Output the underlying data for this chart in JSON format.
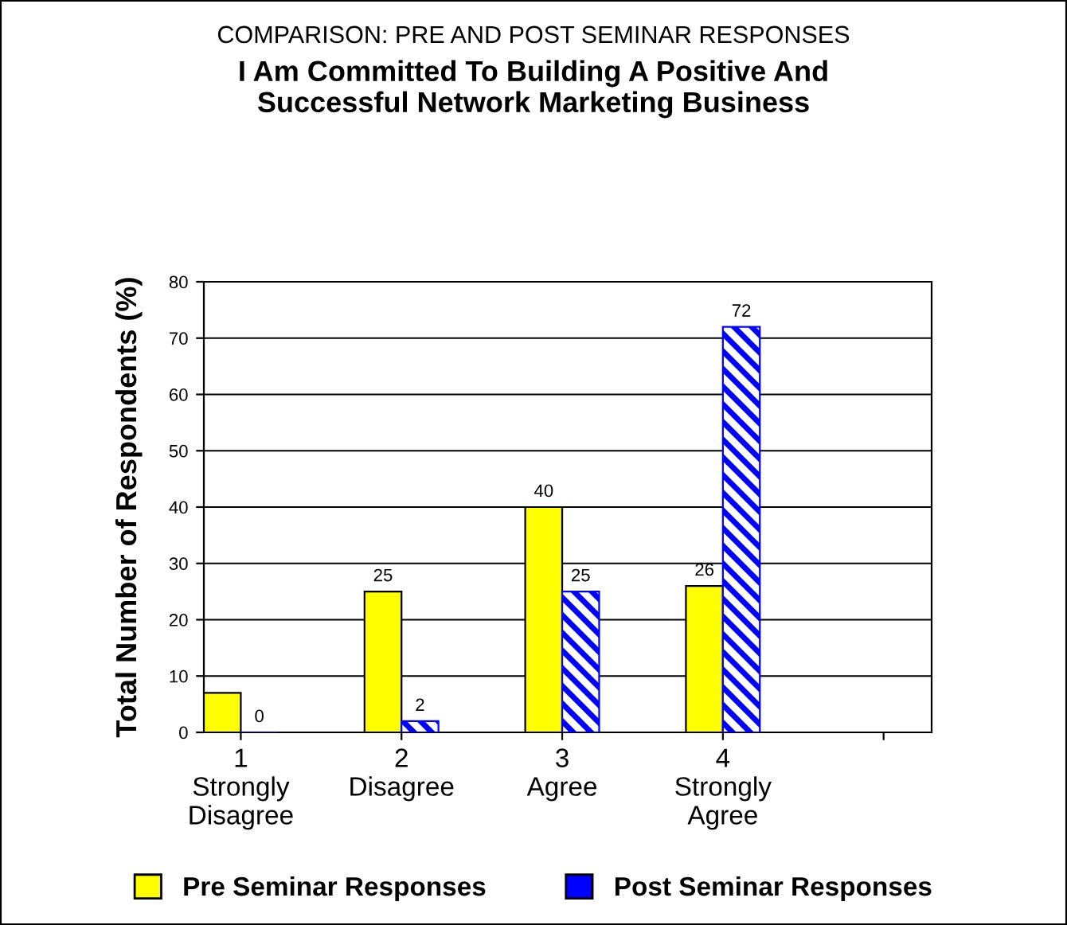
{
  "chart_data": {
    "type": "bar",
    "subtitle": "COMPARISON: PRE AND POST SEMINAR RESPONSES",
    "title": "I Am Committed To Building A Positive And\nSuccessful Network Marketing Business",
    "ylabel": "Total Number of Respondents (%)",
    "categories": [
      "1\nStrongly\nDisagree",
      "2\nDisagree",
      "3\nAgree",
      "4\nStrongly\nAgree",
      null
    ],
    "series": [
      {
        "name": "Pre Seminar Responses",
        "color": "#ffff00",
        "values": [
          7,
          25,
          40,
          26,
          null
        ],
        "value_labels": [
          null,
          "25",
          "40",
          "26",
          null
        ]
      },
      {
        "name": "Post Seminar Responses",
        "color": "#0000ff",
        "values": [
          0,
          2,
          25,
          72,
          null
        ],
        "value_labels": [
          "0",
          "2",
          "25",
          "72",
          null
        ]
      }
    ],
    "ylim": [
      0,
      80
    ],
    "yticks": [
      0,
      10,
      20,
      30,
      40,
      50,
      60,
      70,
      80
    ],
    "grid": "y",
    "legend": "bottom"
  }
}
